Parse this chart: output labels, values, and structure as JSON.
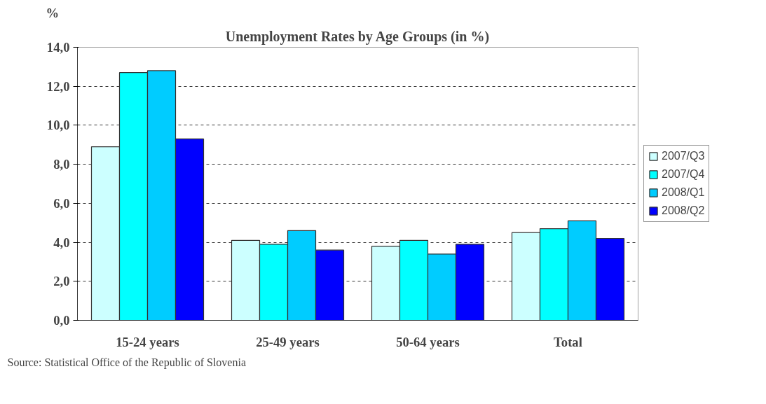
{
  "chart_data": {
    "type": "bar",
    "title": "Unemployment Rates by Age Groups (in %)",
    "ylabel": "%",
    "categories": [
      "15-24 years",
      "25-49 years",
      "50-64 years",
      "Total"
    ],
    "series": [
      {
        "name": "2007/Q3",
        "color": "#ccffff",
        "values": [
          8.9,
          4.1,
          3.8,
          4.5
        ]
      },
      {
        "name": "2007/Q4",
        "color": "#00ffff",
        "values": [
          12.7,
          3.9,
          4.1,
          4.7
        ]
      },
      {
        "name": "2008/Q1",
        "color": "#00ccff",
        "values": [
          12.8,
          4.6,
          3.4,
          5.1
        ]
      },
      {
        "name": "2008/Q2",
        "color": "#0000ff",
        "values": [
          9.3,
          3.6,
          3.9,
          4.2
        ]
      }
    ],
    "ylim": [
      0,
      14
    ],
    "yticks": [
      {
        "value": 0,
        "label": "0,0"
      },
      {
        "value": 2,
        "label": "2,0"
      },
      {
        "value": 4,
        "label": "4,0"
      },
      {
        "value": 6,
        "label": "6,0"
      },
      {
        "value": 8,
        "label": "8,0"
      },
      {
        "value": 10,
        "label": "10,0"
      },
      {
        "value": 12,
        "label": "12,0"
      },
      {
        "value": 14,
        "label": "14,0"
      }
    ],
    "grid": "y",
    "legend": "right",
    "annotations": [
      "Source: Statistical Office of the Republic of  Slovenia"
    ]
  }
}
